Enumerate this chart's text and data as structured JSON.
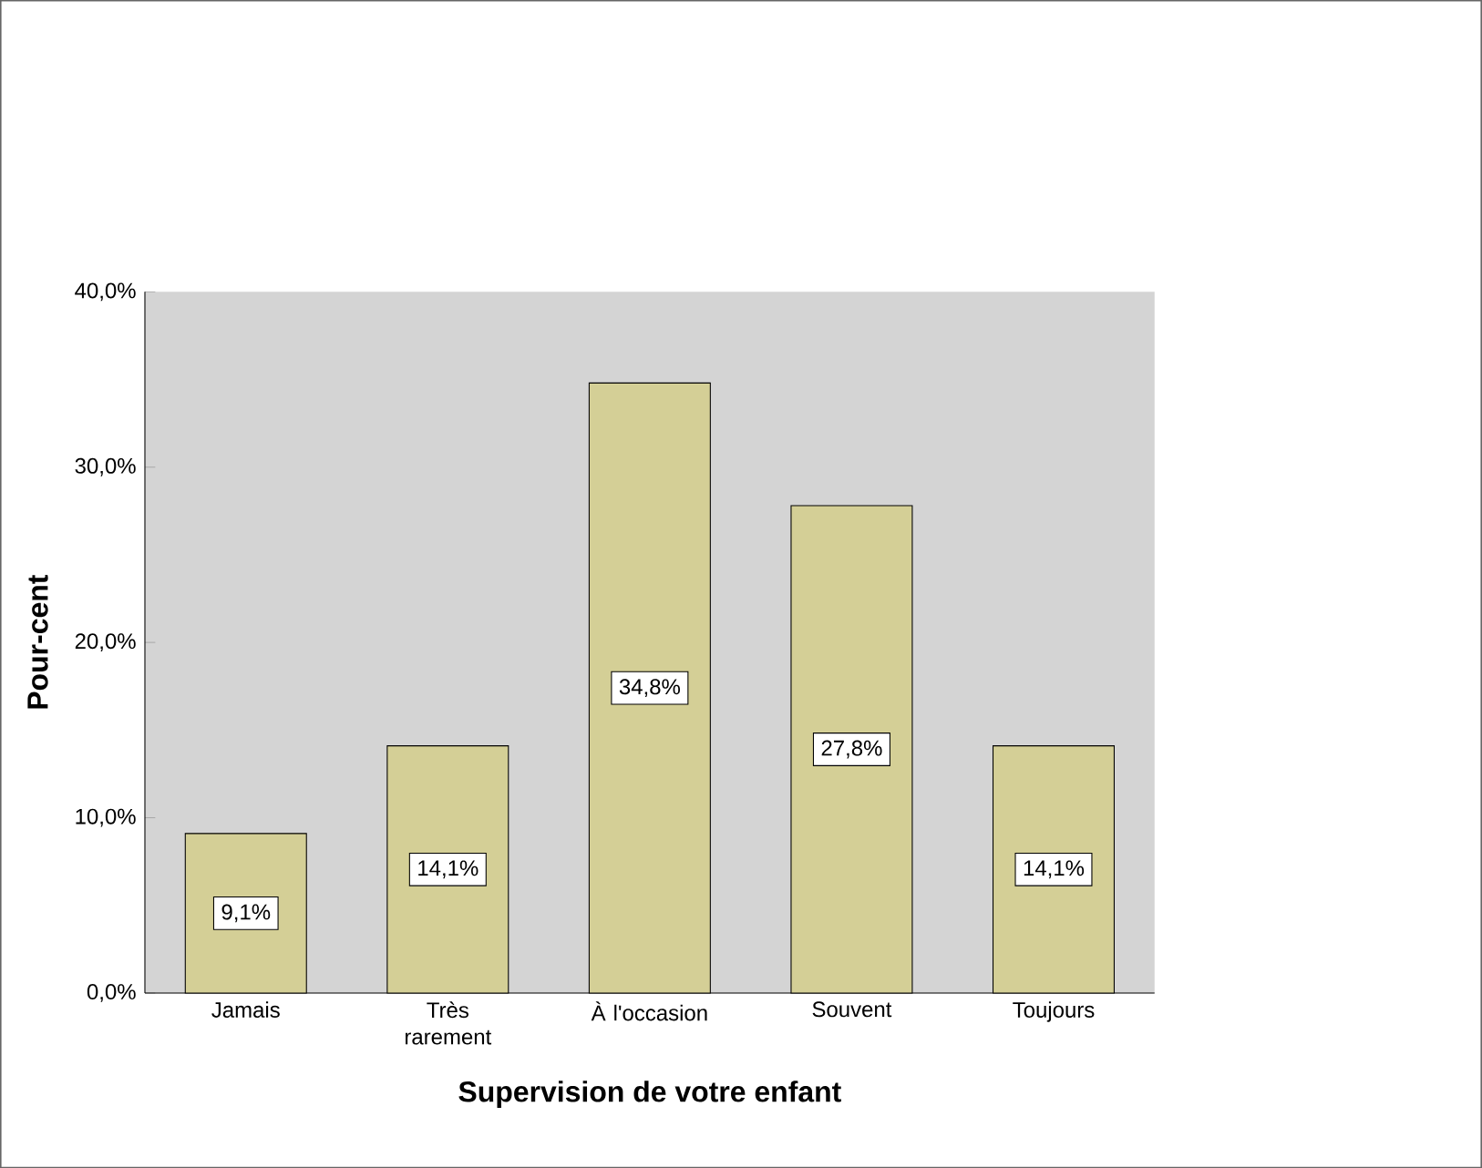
{
  "chart_data": {
    "type": "bar",
    "xlabel": "Supervision de votre enfant",
    "ylabel": "Pour-cent",
    "categories": [
      "Jamais",
      "Très rarement",
      "À l'occasion",
      "Souvent",
      "Toujours"
    ],
    "values": [
      9.1,
      14.1,
      34.8,
      27.8,
      14.1
    ],
    "value_labels": [
      "9,1%",
      "14,1%",
      "34,8%",
      "27,8%",
      "14,1%"
    ],
    "color": "#d4cf96",
    "ylim": [
      0,
      40
    ],
    "yticks": [
      {
        "value": 0,
        "label": "0,0%"
      },
      {
        "value": 10,
        "label": "10,0%"
      },
      {
        "value": 20,
        "label": "20,0%"
      },
      {
        "value": 30,
        "label": "30,0%"
      },
      {
        "value": 40,
        "label": "40,0%"
      }
    ]
  }
}
